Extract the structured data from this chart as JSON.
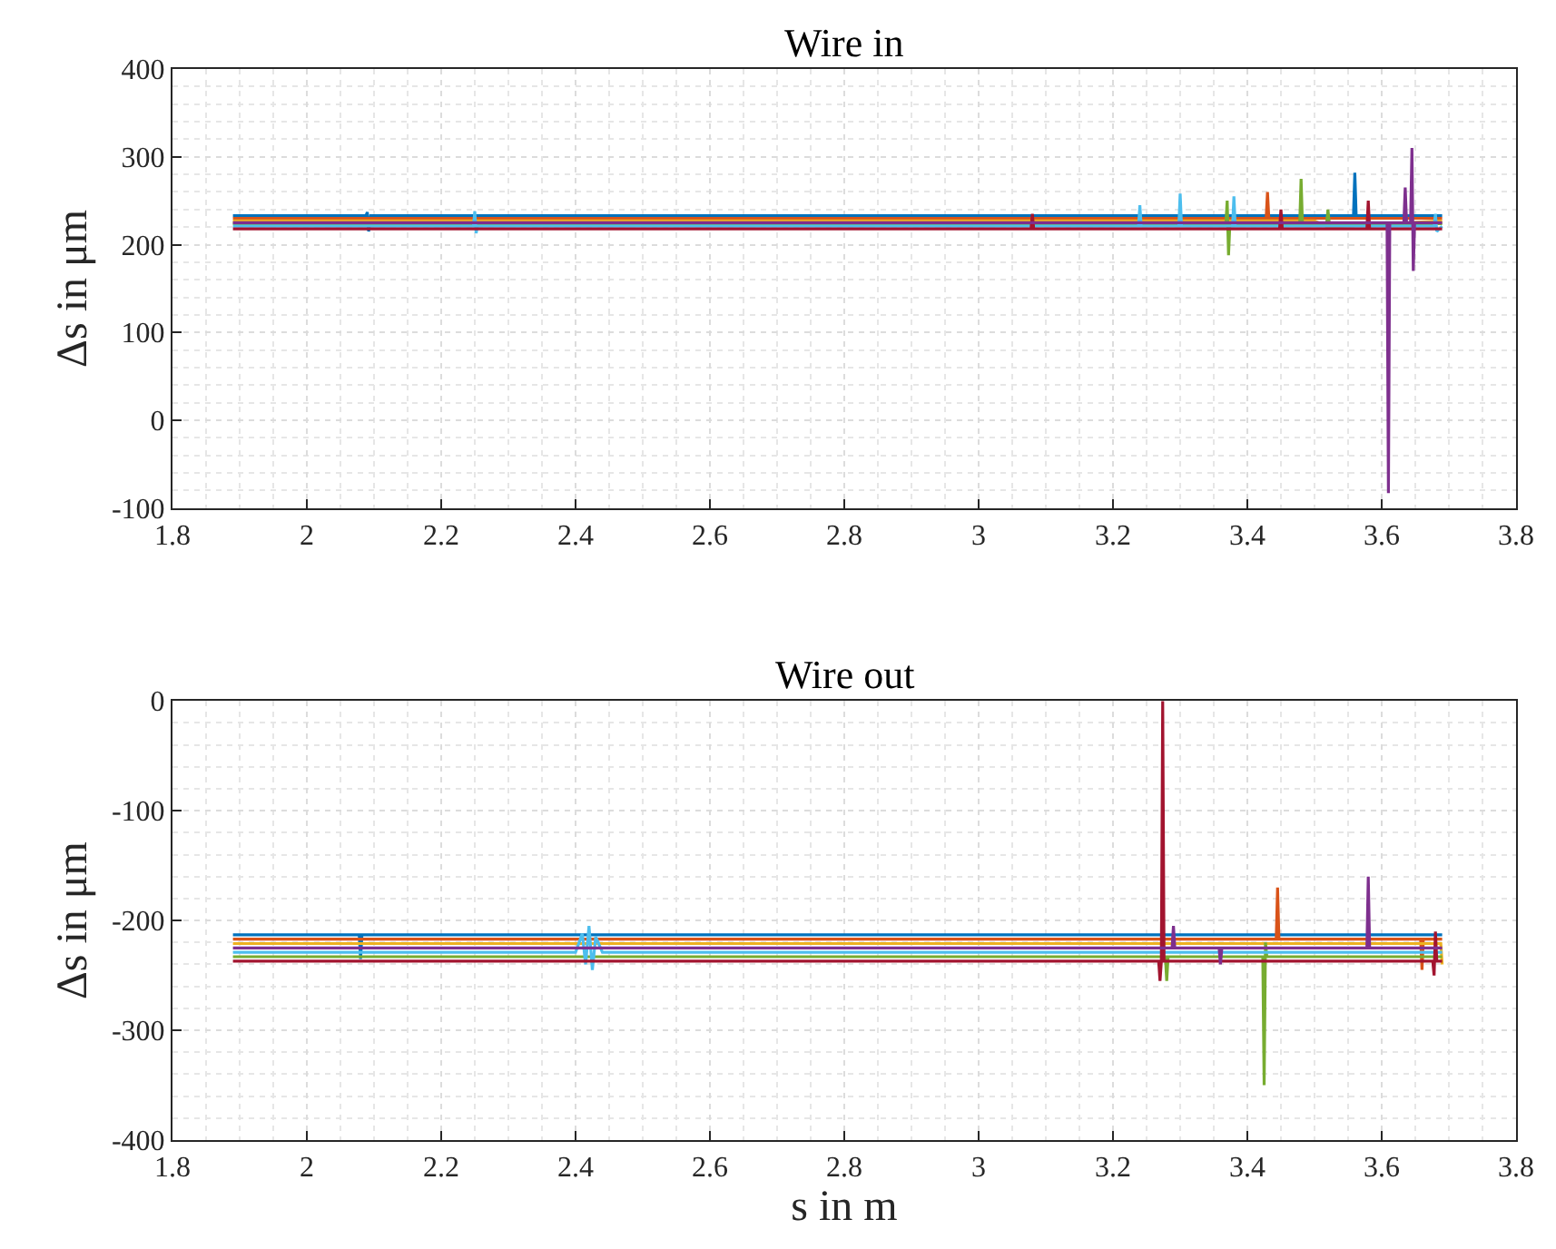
{
  "chart_data": [
    {
      "type": "line",
      "title": "Wire in",
      "ylabel": "Δs in μm",
      "xlim": [
        1.8,
        3.8
      ],
      "xticks": [
        1.8,
        2,
        2.2,
        2.4,
        2.6,
        2.8,
        3,
        3.2,
        3.4,
        3.6,
        3.8
      ],
      "ylim": [
        -100,
        400
      ],
      "yticks": [
        -100,
        0,
        100,
        200,
        300,
        400
      ],
      "grid": true,
      "marker": "none",
      "line_style": "solid",
      "series": [
        {
          "color": "#0072bd",
          "x": [
            1.89,
            2.088,
            2.09,
            2.092,
            2.095,
            2.097,
            2.5,
            3.0,
            3.2,
            3.558,
            3.56,
            3.562,
            3.69
          ],
          "values": [
            233,
            233,
            237,
            215,
            233,
            233,
            233,
            233,
            233,
            233,
            282,
            233,
            233
          ]
        },
        {
          "color": "#d95319",
          "x": [
            1.89,
            2.6,
            3.0,
            3.428,
            3.43,
            3.432,
            3.69
          ],
          "values": [
            230,
            230,
            230,
            230,
            260,
            230,
            230
          ]
        },
        {
          "color": "#edb120",
          "x": [
            1.89,
            2.3,
            2.8,
            3.2,
            3.5,
            3.52,
            3.69
          ],
          "values": [
            227,
            227,
            227,
            227,
            227,
            220,
            227
          ]
        },
        {
          "color": "#77ac30",
          "x": [
            1.89,
            2.9,
            3.368,
            3.37,
            3.372,
            3.374,
            3.478,
            3.48,
            3.482,
            3.518,
            3.52,
            3.522,
            3.69
          ],
          "values": [
            224,
            224,
            224,
            250,
            188,
            224,
            224,
            275,
            224,
            224,
            240,
            224,
            224
          ]
        },
        {
          "color": "#4dbeee",
          "x": [
            1.89,
            2.248,
            2.25,
            2.252,
            2.254,
            2.9,
            3.238,
            3.24,
            3.242,
            3.298,
            3.3,
            3.302,
            3.378,
            3.38,
            3.382,
            3.678,
            3.68,
            3.682,
            3.69
          ],
          "values": [
            221,
            221,
            238,
            213,
            221,
            221,
            221,
            245,
            221,
            221,
            258,
            221,
            221,
            255,
            221,
            221,
            235,
            215,
            221
          ]
        },
        {
          "color": "#a2142f",
          "x": [
            1.89,
            3.078,
            3.08,
            3.082,
            3.448,
            3.45,
            3.452,
            3.578,
            3.58,
            3.582,
            3.69
          ],
          "values": [
            218,
            218,
            235,
            218,
            218,
            240,
            218,
            218,
            250,
            218,
            218
          ]
        },
        {
          "color": "#7e2f8e",
          "x": [
            1.89,
            3.608,
            3.61,
            3.612,
            3.633,
            3.635,
            3.637,
            3.643,
            3.645,
            3.647,
            3.649,
            3.69
          ],
          "values": [
            225,
            225,
            -83,
            225,
            225,
            265,
            225,
            225,
            310,
            170,
            225,
            225
          ]
        }
      ]
    },
    {
      "type": "line",
      "title": "Wire out",
      "xlabel": "s in m",
      "ylabel": "Δs in μm",
      "xlim": [
        1.8,
        3.8
      ],
      "xticks": [
        1.8,
        2,
        2.2,
        2.4,
        2.6,
        2.8,
        3,
        3.2,
        3.4,
        3.6,
        3.8
      ],
      "ylim": [
        -400,
        0
      ],
      "yticks": [
        -400,
        -300,
        -200,
        -100,
        0
      ],
      "grid": true,
      "marker": "none",
      "line_style": "solid",
      "series": [
        {
          "color": "#0072bd",
          "x": [
            1.89,
            2.078,
            2.08,
            2.082,
            2.084,
            2.6,
            3.69
          ],
          "values": [
            -213,
            -213,
            -235,
            -213,
            -213,
            -213,
            -213
          ]
        },
        {
          "color": "#d95319",
          "x": [
            1.89,
            3.0,
            3.443,
            3.445,
            3.447,
            3.658,
            3.66,
            3.662,
            3.69
          ],
          "values": [
            -217,
            -217,
            -217,
            -170,
            -217,
            -217,
            -245,
            -217,
            -217
          ]
        },
        {
          "color": "#edb120",
          "x": [
            1.89,
            2.5,
            3.1,
            3.688,
            3.69
          ],
          "values": [
            -221,
            -221,
            -221,
            -221,
            -240
          ]
        },
        {
          "color": "#77ac30",
          "x": [
            1.89,
            3.278,
            3.28,
            3.282,
            3.423,
            3.425,
            3.427,
            3.429,
            3.69
          ],
          "values": [
            -233,
            -233,
            -255,
            -233,
            -233,
            -350,
            -220,
            -233,
            -233
          ]
        },
        {
          "color": "#4dbeee",
          "x": [
            1.89,
            2.4,
            2.41,
            2.415,
            2.42,
            2.425,
            2.43,
            2.44,
            3.69
          ],
          "values": [
            -229,
            -229,
            -212,
            -240,
            -205,
            -245,
            -215,
            -229,
            -229
          ]
        },
        {
          "color": "#a2142f",
          "x": [
            1.89,
            3.268,
            3.27,
            3.272,
            3.274,
            3.276,
            3.676,
            3.678,
            3.68,
            3.682,
            3.69
          ],
          "values": [
            -237,
            -237,
            -255,
            -237,
            0,
            -237,
            -237,
            -250,
            -210,
            -237,
            -237
          ]
        },
        {
          "color": "#7e2f8e",
          "x": [
            1.89,
            3.288,
            3.29,
            3.292,
            3.358,
            3.36,
            3.362,
            3.578,
            3.58,
            3.582,
            3.69
          ],
          "values": [
            -225,
            -225,
            -205,
            -225,
            -225,
            -240,
            -225,
            -225,
            -160,
            -225,
            -225
          ]
        }
      ]
    }
  ]
}
